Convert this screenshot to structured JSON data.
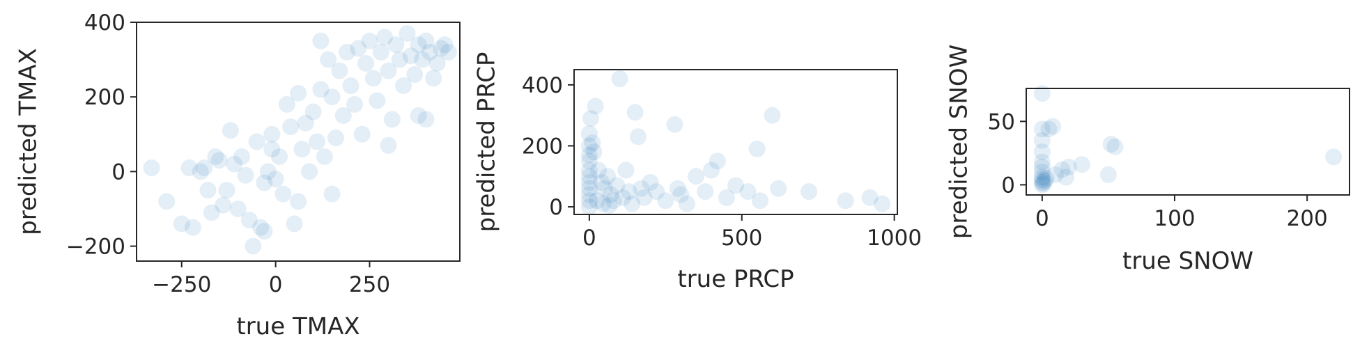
{
  "colors": {
    "point": "#1f77b4",
    "axis": "#262626",
    "background": "#ffffff"
  },
  "chart_data": [
    {
      "type": "scatter",
      "title": "",
      "xlabel": "true TMAX",
      "ylabel": "predicted TMAX",
      "xlim": [
        -370,
        490
      ],
      "ylim": [
        -240,
        400
      ],
      "xticks": [
        -250,
        0,
        250
      ],
      "xtick_labels": [
        "−250",
        "0",
        "250"
      ],
      "yticks": [
        -200,
        0,
        200,
        400
      ],
      "ytick_labels": [
        "−200",
        "0",
        "200",
        "400"
      ],
      "grid": false,
      "point_alpha": 0.12,
      "points": [
        [
          -330,
          10
        ],
        [
          -290,
          -80
        ],
        [
          -250,
          -140
        ],
        [
          -220,
          -150
        ],
        [
          -200,
          0
        ],
        [
          -190,
          10
        ],
        [
          -230,
          10
        ],
        [
          -180,
          -50
        ],
        [
          -170,
          -110
        ],
        [
          -160,
          40
        ],
        [
          -150,
          30
        ],
        [
          -140,
          -90
        ],
        [
          -130,
          -50
        ],
        [
          -120,
          110
        ],
        [
          -110,
          20
        ],
        [
          -100,
          -100
        ],
        [
          -90,
          40
        ],
        [
          -80,
          -10
        ],
        [
          -70,
          -130
        ],
        [
          -60,
          -200
        ],
        [
          -50,
          80
        ],
        [
          -40,
          -150
        ],
        [
          -30,
          -30
        ],
        [
          -20,
          0
        ],
        [
          -10,
          100
        ],
        [
          0,
          -20
        ],
        [
          10,
          40
        ],
        [
          20,
          -60
        ],
        [
          30,
          180
        ],
        [
          40,
          120
        ],
        [
          50,
          -140
        ],
        [
          60,
          -80
        ],
        [
          70,
          60
        ],
        [
          80,
          130
        ],
        [
          90,
          0
        ],
        [
          100,
          160
        ],
        [
          110,
          80
        ],
        [
          120,
          220
        ],
        [
          130,
          40
        ],
        [
          140,
          300
        ],
        [
          150,
          200
        ],
        [
          160,
          90
        ],
        [
          170,
          270
        ],
        [
          180,
          150
        ],
        [
          190,
          320
        ],
        [
          200,
          230
        ],
        [
          210,
          180
        ],
        [
          220,
          330
        ],
        [
          230,
          100
        ],
        [
          240,
          290
        ],
        [
          250,
          350
        ],
        [
          260,
          250
        ],
        [
          270,
          190
        ],
        [
          280,
          320
        ],
        [
          290,
          360
        ],
        [
          300,
          270
        ],
        [
          310,
          140
        ],
        [
          320,
          340
        ],
        [
          330,
          300
        ],
        [
          340,
          230
        ],
        [
          350,
          370
        ],
        [
          360,
          310
        ],
        [
          370,
          260
        ],
        [
          380,
          340
        ],
        [
          390,
          300
        ],
        [
          400,
          350
        ],
        [
          410,
          320
        ],
        [
          420,
          250
        ],
        [
          430,
          290
        ],
        [
          440,
          330
        ],
        [
          450,
          340
        ],
        [
          460,
          320
        ],
        [
          380,
          150
        ],
        [
          400,
          140
        ],
        [
          120,
          350
        ],
        [
          60,
          210
        ],
        [
          300,
          70
        ],
        [
          150,
          -60
        ],
        [
          -30,
          -160
        ],
        [
          -10,
          60
        ]
      ]
    },
    {
      "type": "scatter",
      "title": "",
      "xlabel": "true PRCP",
      "ylabel": "predicted PRCP",
      "xlim": [
        -50,
        1010
      ],
      "ylim": [
        -25,
        450
      ],
      "xticks": [
        0,
        500,
        1000
      ],
      "xtick_labels": [
        "0",
        "500",
        "1000"
      ],
      "yticks": [
        0,
        200,
        400
      ],
      "ytick_labels": [
        "0",
        "200",
        "400"
      ],
      "grid": false,
      "point_alpha": 0.12,
      "points": [
        [
          0,
          240
        ],
        [
          0,
          200
        ],
        [
          0,
          170
        ],
        [
          0,
          150
        ],
        [
          0,
          120
        ],
        [
          0,
          100
        ],
        [
          0,
          80
        ],
        [
          0,
          60
        ],
        [
          0,
          40
        ],
        [
          0,
          20
        ],
        [
          0,
          0
        ],
        [
          5,
          290
        ],
        [
          10,
          210
        ],
        [
          15,
          180
        ],
        [
          20,
          330
        ],
        [
          30,
          120
        ],
        [
          40,
          80
        ],
        [
          50,
          60
        ],
        [
          60,
          100
        ],
        [
          70,
          40
        ],
        [
          80,
          20
        ],
        [
          90,
          70
        ],
        [
          100,
          420
        ],
        [
          110,
          30
        ],
        [
          120,
          120
        ],
        [
          130,
          50
        ],
        [
          140,
          10
        ],
        [
          150,
          310
        ],
        [
          160,
          230
        ],
        [
          170,
          60
        ],
        [
          180,
          30
        ],
        [
          200,
          80
        ],
        [
          220,
          50
        ],
        [
          250,
          20
        ],
        [
          280,
          270
        ],
        [
          290,
          60
        ],
        [
          300,
          40
        ],
        [
          320,
          10
        ],
        [
          350,
          100
        ],
        [
          380,
          50
        ],
        [
          400,
          120
        ],
        [
          420,
          150
        ],
        [
          450,
          30
        ],
        [
          480,
          70
        ],
        [
          520,
          50
        ],
        [
          550,
          190
        ],
        [
          560,
          20
        ],
        [
          600,
          300
        ],
        [
          620,
          60
        ],
        [
          720,
          50
        ],
        [
          840,
          20
        ],
        [
          920,
          30
        ],
        [
          960,
          10
        ],
        [
          25,
          20
        ],
        [
          45,
          10
        ],
        [
          65,
          5
        ]
      ]
    },
    {
      "type": "scatter",
      "title": "",
      "xlabel": "true SNOW",
      "ylabel": "predicted SNOW",
      "xlim": [
        -12,
        232
      ],
      "ylim": [
        -8,
        76
      ],
      "xticks": [
        0,
        100,
        200
      ],
      "xtick_labels": [
        "0",
        "100",
        "200"
      ],
      "yticks": [
        0,
        50
      ],
      "ytick_labels": [
        "0",
        "50"
      ],
      "grid": false,
      "point_alpha": 0.12,
      "points": [
        [
          0,
          0
        ],
        [
          0,
          2
        ],
        [
          0,
          4
        ],
        [
          0,
          6
        ],
        [
          0,
          10
        ],
        [
          0,
          14
        ],
        [
          0,
          18
        ],
        [
          0,
          26
        ],
        [
          0,
          35
        ],
        [
          0,
          44
        ],
        [
          0,
          72
        ],
        [
          1,
          1
        ],
        [
          2,
          3
        ],
        [
          3,
          5
        ],
        [
          5,
          44
        ],
        [
          8,
          46
        ],
        [
          10,
          8
        ],
        [
          15,
          12
        ],
        [
          18,
          6
        ],
        [
          20,
          14
        ],
        [
          30,
          16
        ],
        [
          50,
          8
        ],
        [
          52,
          32
        ],
        [
          55,
          30
        ],
        [
          220,
          22
        ]
      ]
    }
  ]
}
